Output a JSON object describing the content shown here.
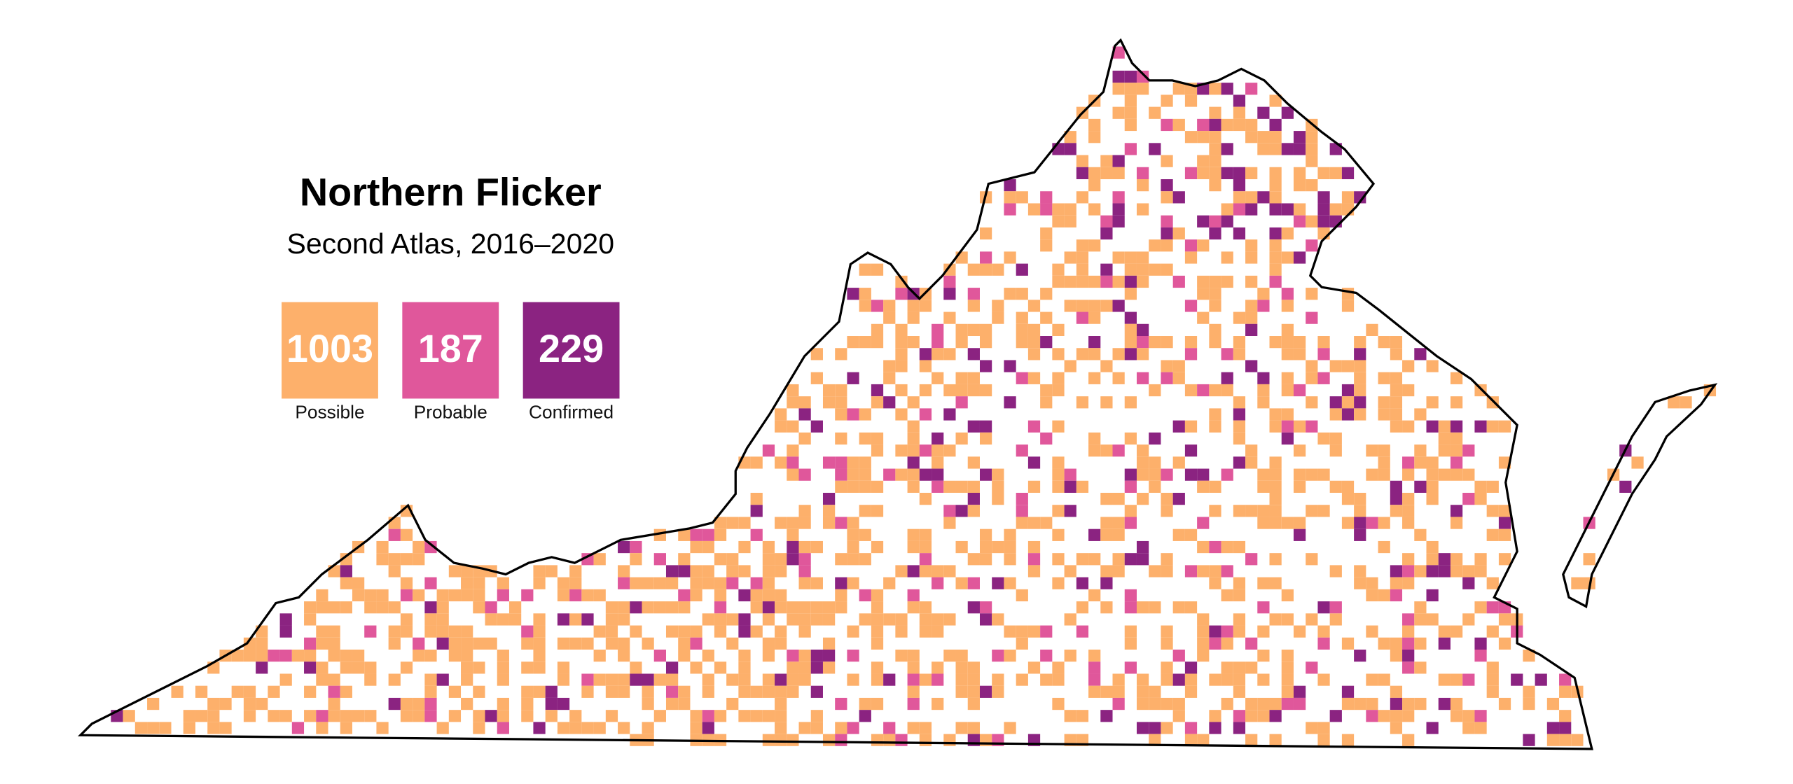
{
  "title": "Northern Flicker",
  "subtitle": "Second Atlas, 2016–2020",
  "legend": [
    {
      "count": 1003,
      "label": "Possible",
      "color": "#fdb06b"
    },
    {
      "count": 187,
      "label": "Probable",
      "color": "#e0579b"
    },
    {
      "count": 229,
      "label": "Confirmed",
      "color": "#8b2381"
    }
  ]
}
